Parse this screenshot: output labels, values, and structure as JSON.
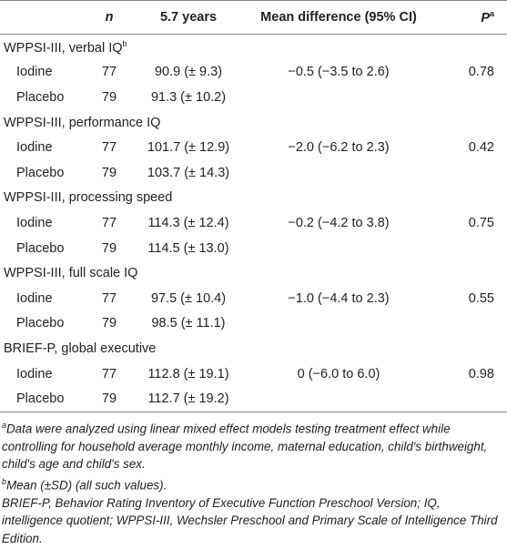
{
  "header": {
    "n": "n",
    "years": "5.7 years",
    "diff": "Mean difference (95% CI)",
    "p": "P",
    "p_sup": "a"
  },
  "groups": [
    {
      "label": "WPPSI-III, verbal IQ",
      "sup": "b",
      "rows": [
        {
          "group": "Iodine",
          "n": 77,
          "value": "90.9 (± 9.3)",
          "diff": "−0.5 (−3.5 to 2.6)",
          "p": 0.78
        },
        {
          "group": "Placebo",
          "n": 79,
          "value": "91.3 (± 10.2)"
        }
      ]
    },
    {
      "label": "WPPSI-III, performance IQ",
      "rows": [
        {
          "group": "Iodine",
          "n": 77,
          "value": "101.7 (± 12.9)",
          "diff": "−2.0 (−6.2 to 2.3)",
          "p": 0.42
        },
        {
          "group": "Placebo",
          "n": 79,
          "value": "103.7 (± 14.3)"
        }
      ]
    },
    {
      "label": "WPPSI-III, processing speed",
      "rows": [
        {
          "group": "Iodine",
          "n": 77,
          "value": "114.3 (± 12.4)",
          "diff": "−0.2 (−4.2 to 3.8)",
          "p": 0.75
        },
        {
          "group": "Placebo",
          "n": 79,
          "value": "114.5 (± 13.0)"
        }
      ]
    },
    {
      "label": "WPPSI-III, full scale IQ",
      "rows": [
        {
          "group": "Iodine",
          "n": 77,
          "value": "97.5 (± 10.4)",
          "diff": "−1.0 (−4.4 to 2.3)",
          "p": 0.55
        },
        {
          "group": "Placebo",
          "n": 79,
          "value": "98.5 (± 11.1)"
        }
      ]
    },
    {
      "label": "BRIEF-P, global executive",
      "rows": [
        {
          "group": "Iodine",
          "n": 77,
          "value": "112.8 (± 19.1)",
          "diff": "0 (−6.0 to 6.0)",
          "p": 0.98
        },
        {
          "group": "Placebo",
          "n": 79,
          "value": "112.7 (± 19.2)"
        }
      ]
    }
  ],
  "footnotes": [
    {
      "mark": "a",
      "text": "Data were analyzed using linear mixed effect models testing treatment effect while controlling for household average monthly income, maternal education, child's birthweight, child's age and child's sex."
    },
    {
      "mark": "b",
      "text": "Mean (±SD) (all such values)."
    },
    {
      "text": "BRIEF-P, Behavior Rating Inventory of Executive Function Preschool Version; IQ, intelligence quotient; WPPSI-III, Wechsler Preschool and Primary Scale of Intelligence Third Edition."
    }
  ]
}
